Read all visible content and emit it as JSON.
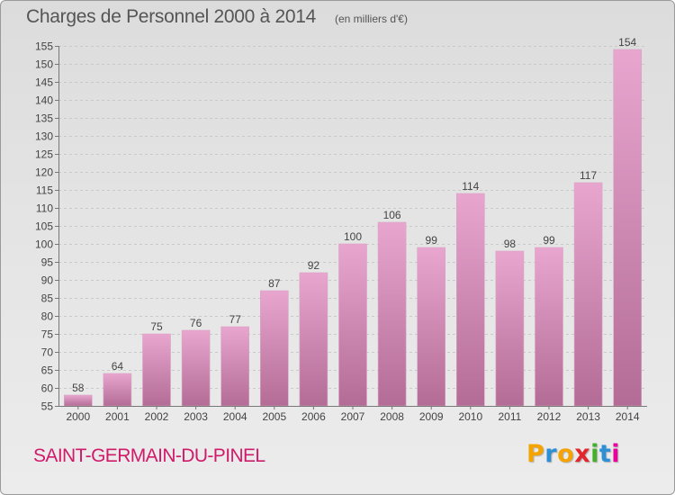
{
  "header": {
    "title": "Charges de Personnel 2000 à 2014",
    "unit": "(en milliers d'€)"
  },
  "footer": {
    "commune": "SAINT-GERMAIN-DU-PINEL",
    "logo_text": "Proxiti",
    "logo_colors": [
      "#f5a300",
      "#2d8fd6",
      "#f5a300",
      "#e3262b",
      "#43b02a",
      "#2d8fd6",
      "#e8009a"
    ]
  },
  "colors": {
    "bar_top": "#e8a6cf",
    "bar_bottom": "#b36c96",
    "commune_text": "#d01a6a",
    "title_text": "#555555"
  },
  "chart_data": {
    "type": "bar",
    "title": "Charges de Personnel 2000 à 2014",
    "subtitle": "(en milliers d'€)",
    "categories": [
      "2000",
      "2001",
      "2002",
      "2003",
      "2004",
      "2005",
      "2006",
      "2007",
      "2008",
      "2009",
      "2010",
      "2011",
      "2012",
      "2013",
      "2014"
    ],
    "values": [
      58,
      64,
      75,
      76,
      77,
      87,
      92,
      100,
      106,
      99,
      114,
      98,
      99,
      117,
      154
    ],
    "ylim": [
      55,
      155
    ],
    "yticks": [
      55,
      60,
      65,
      70,
      75,
      80,
      85,
      90,
      95,
      100,
      105,
      110,
      115,
      120,
      125,
      130,
      135,
      140,
      145,
      150,
      155
    ],
    "grid": true,
    "data_labels": true
  }
}
